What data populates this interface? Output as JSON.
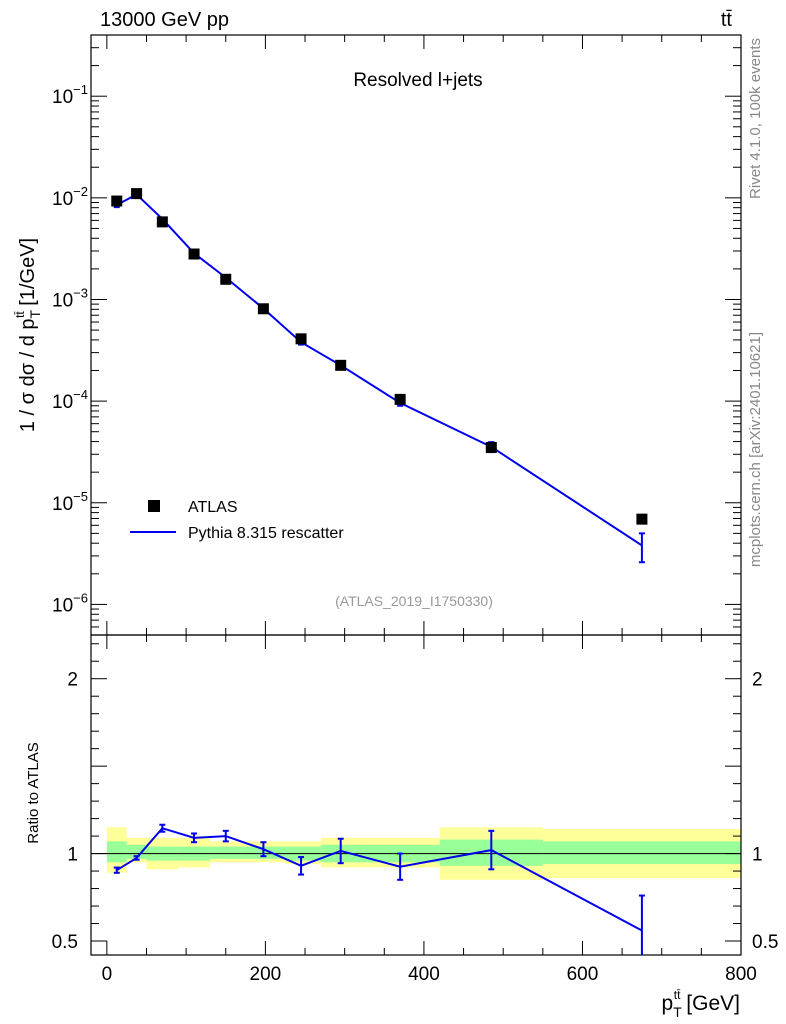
{
  "header": {
    "energy_label": "13000 GeV pp",
    "process_label": "tt̄"
  },
  "side_labels": {
    "rivet": "Rivet 4.1.0,  100k events",
    "mcplots": "mcplots.cern.ch [arXiv:2401.10621]"
  },
  "chart_data": [
    {
      "type": "scatter",
      "title": "Resolved l+jets",
      "analysis_label": "(ATLAS_2019_I1750330)",
      "xlabel": "p_T^{tt̄} [GeV]",
      "ylabel": "1 / σ dσ / d p_T^{tt̄} [1/GeV]",
      "yscale": "log",
      "xlim": [
        -20,
        800
      ],
      "ylim": [
        5e-07,
        0.4
      ],
      "y_ticks": [
        "10^-6",
        "10^-5",
        "10^-4",
        "10^-3",
        "10^-2",
        "10^-1"
      ],
      "legend": [
        "ATLAS",
        "Pythia 8.315 rescatter"
      ],
      "series": [
        {
          "name": "ATLAS",
          "marker": "square",
          "x": [
            12.5,
            37.5,
            70,
            110,
            150,
            197.5,
            245,
            295,
            370,
            485,
            675
          ],
          "y": [
            0.0093,
            0.011,
            0.0058,
            0.0028,
            0.00158,
            0.00081,
            0.00041,
            0.000225,
            0.000104,
            3.5e-05,
            6.9e-06
          ]
        },
        {
          "name": "Pythia 8.315 rescatter",
          "marker": "line",
          "x": [
            12.5,
            37.5,
            70,
            110,
            150,
            197.5,
            245,
            295,
            370,
            485,
            675
          ],
          "y": [
            0.0085,
            0.0108,
            0.0062,
            0.00285,
            0.00164,
            0.000815,
            0.00038,
            0.000225,
            9.6e-05,
            3.55e-05,
            3.8e-06
          ],
          "y_err": [
            0.0004,
            0.0005,
            0.0002,
            8e-05,
            5e-05,
            3e-05,
            2e-05,
            1.2e-05,
            6e-06,
            4e-06,
            1.2e-06
          ]
        }
      ]
    },
    {
      "type": "line",
      "ylabel": "Ratio to ATLAS",
      "xlim": [
        -20,
        800
      ],
      "ylim": [
        0.42,
        2.25
      ],
      "x_ticks": [
        0,
        200,
        400,
        600,
        800
      ],
      "y_ticks": [
        0.5,
        1,
        2
      ],
      "bands": [
        {
          "x0": 0,
          "x1": 25,
          "g_lo": 0.95,
          "g_hi": 1.07,
          "y_lo": 0.89,
          "y_hi": 1.15
        },
        {
          "x0": 25,
          "x1": 50,
          "g_lo": 0.97,
          "g_hi": 1.05,
          "y_lo": 0.95,
          "y_hi": 1.09
        },
        {
          "x0": 50,
          "x1": 90,
          "g_lo": 0.96,
          "g_hi": 1.04,
          "y_lo": 0.91,
          "y_hi": 1.09
        },
        {
          "x0": 90,
          "x1": 130,
          "g_lo": 0.96,
          "g_hi": 1.04,
          "y_lo": 0.92,
          "y_hi": 1.09
        },
        {
          "x0": 130,
          "x1": 170,
          "g_lo": 0.97,
          "g_hi": 1.04,
          "y_lo": 0.95,
          "y_hi": 1.07
        },
        {
          "x0": 170,
          "x1": 225,
          "g_lo": 0.97,
          "g_hi": 1.04,
          "y_lo": 0.95,
          "y_hi": 1.07
        },
        {
          "x0": 225,
          "x1": 270,
          "g_lo": 0.96,
          "g_hi": 1.04,
          "y_lo": 0.94,
          "y_hi": 1.07
        },
        {
          "x0": 270,
          "x1": 320,
          "g_lo": 0.95,
          "g_hi": 1.05,
          "y_lo": 0.92,
          "y_hi": 1.09
        },
        {
          "x0": 320,
          "x1": 420,
          "g_lo": 0.95,
          "g_hi": 1.05,
          "y_lo": 0.92,
          "y_hi": 1.09
        },
        {
          "x0": 420,
          "x1": 550,
          "g_lo": 0.93,
          "g_hi": 1.08,
          "y_lo": 0.85,
          "y_hi": 1.15
        },
        {
          "x0": 550,
          "x1": 800,
          "g_lo": 0.94,
          "g_hi": 1.07,
          "y_lo": 0.86,
          "y_hi": 1.14
        }
      ],
      "series": [
        {
          "name": "Pythia 8.315 rescatter / ATLAS",
          "x": [
            12.5,
            37.5,
            70,
            110,
            150,
            197.5,
            245,
            295,
            370,
            485,
            675
          ],
          "y": [
            0.905,
            0.975,
            1.145,
            1.09,
            1.1,
            1.025,
            0.93,
            1.015,
            0.925,
            1.02,
            0.56
          ],
          "y_err": [
            0.015,
            0.01,
            0.02,
            0.025,
            0.03,
            0.04,
            0.05,
            0.07,
            0.075,
            0.11,
            0.2
          ]
        }
      ]
    }
  ]
}
